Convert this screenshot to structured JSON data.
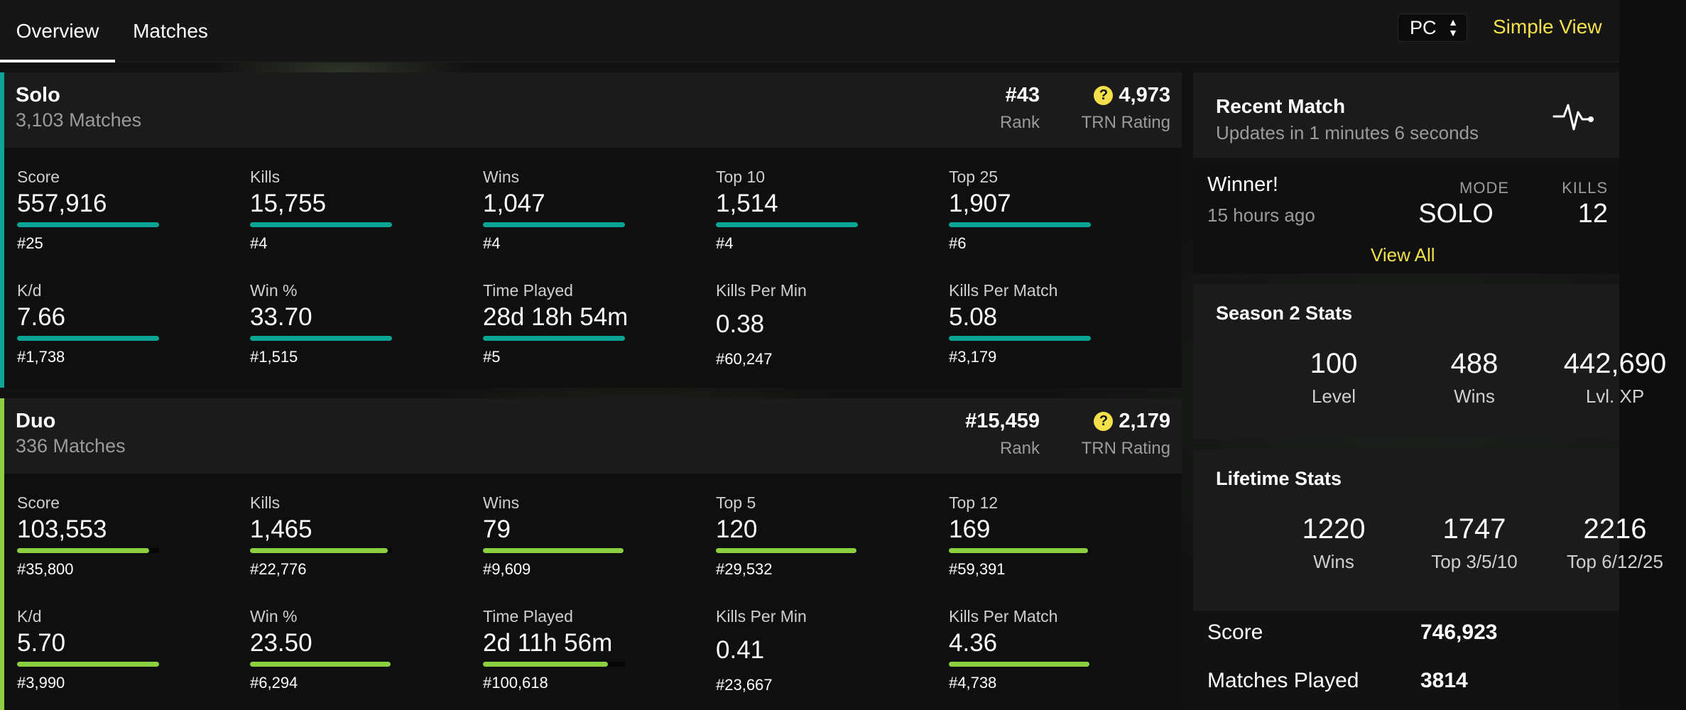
{
  "nav": {
    "tabs": [
      {
        "label": "Overview",
        "active": true
      },
      {
        "label": "Matches",
        "active": false
      }
    ],
    "platform": "PC",
    "simple_view": "Simple View"
  },
  "colors": {
    "solo_accent": "#0aa597",
    "duo_accent": "#8ccf3f",
    "highlight": "#f4e04a"
  },
  "solo": {
    "title": "Solo",
    "matches": "3,103 Matches",
    "rank_value": "#43",
    "rank_label": "Rank",
    "trn_value": "4,973",
    "trn_label": "TRN Rating",
    "stats": [
      {
        "label": "Score",
        "value": "557,916",
        "rank": "#25",
        "bar": 1.0
      },
      {
        "label": "Kills",
        "value": "15,755",
        "rank": "#4",
        "bar": 1.0
      },
      {
        "label": "Wins",
        "value": "1,047",
        "rank": "#4",
        "bar": 1.0
      },
      {
        "label": "Top 10",
        "value": "1,514",
        "rank": "#4",
        "bar": 1.0
      },
      {
        "label": "Top 25",
        "value": "1,907",
        "rank": "#6",
        "bar": 1.0
      },
      {
        "label": "K/d",
        "value": "7.66",
        "rank": "#1,738",
        "bar": 1.0
      },
      {
        "label": "Win %",
        "value": "33.70",
        "rank": "#1,515",
        "bar": 1.0
      },
      {
        "label": "Time Played",
        "value": "28d 18h 54m",
        "rank": "#5",
        "bar": 1.0
      },
      {
        "label": "Kills Per Min",
        "value": "0.38",
        "rank": "#60,247",
        "bar": null
      },
      {
        "label": "Kills Per Match",
        "value": "5.08",
        "rank": "#3,179",
        "bar": 1.0
      }
    ]
  },
  "duo": {
    "title": "Duo",
    "matches": "336 Matches",
    "rank_value": "#15,459",
    "rank_label": "Rank",
    "trn_value": "2,179",
    "trn_label": "TRN Rating",
    "stats": [
      {
        "label": "Score",
        "value": "103,553",
        "rank": "#35,800",
        "bar": 0.93
      },
      {
        "label": "Kills",
        "value": "1,465",
        "rank": "#22,776",
        "bar": 0.97
      },
      {
        "label": "Wins",
        "value": "79",
        "rank": "#9,609",
        "bar": 0.99
      },
      {
        "label": "Top 5",
        "value": "120",
        "rank": "#29,532",
        "bar": 0.99
      },
      {
        "label": "Top 12",
        "value": "169",
        "rank": "#59,391",
        "bar": 0.98
      },
      {
        "label": "K/d",
        "value": "5.70",
        "rank": "#3,990",
        "bar": 1.0
      },
      {
        "label": "Win %",
        "value": "23.50",
        "rank": "#6,294",
        "bar": 0.99
      },
      {
        "label": "Time Played",
        "value": "2d 11h 56m",
        "rank": "#100,618",
        "bar": 0.88
      },
      {
        "label": "Kills Per Min",
        "value": "0.41",
        "rank": "#23,667",
        "bar": null
      },
      {
        "label": "Kills Per Match",
        "value": "4.36",
        "rank": "#4,738",
        "bar": 0.99
      }
    ]
  },
  "recent_match": {
    "title": "Recent Match",
    "subtitle": "Updates in 1 minutes 6 seconds",
    "result": "Winner!",
    "time_ago": "15 hours ago",
    "mode_label": "MODE",
    "mode_value": "SOLO",
    "kills_label": "KILLS",
    "kills_value": "12",
    "view_all": "View All"
  },
  "season": {
    "title": "Season 2 Stats",
    "stats": [
      {
        "value": "100",
        "label": "Level"
      },
      {
        "value": "488",
        "label": "Wins"
      },
      {
        "value": "442,690",
        "label": "Lvl. XP"
      }
    ]
  },
  "lifetime": {
    "title": "Lifetime Stats",
    "stats": [
      {
        "value": "1220",
        "label": "Wins"
      },
      {
        "value": "1747",
        "label": "Top 3/5/10"
      },
      {
        "value": "2216",
        "label": "Top 6/12/25"
      }
    ],
    "rows": [
      {
        "label": "Score",
        "value": "746,923"
      },
      {
        "label": "Matches Played",
        "value": "3814"
      }
    ]
  }
}
